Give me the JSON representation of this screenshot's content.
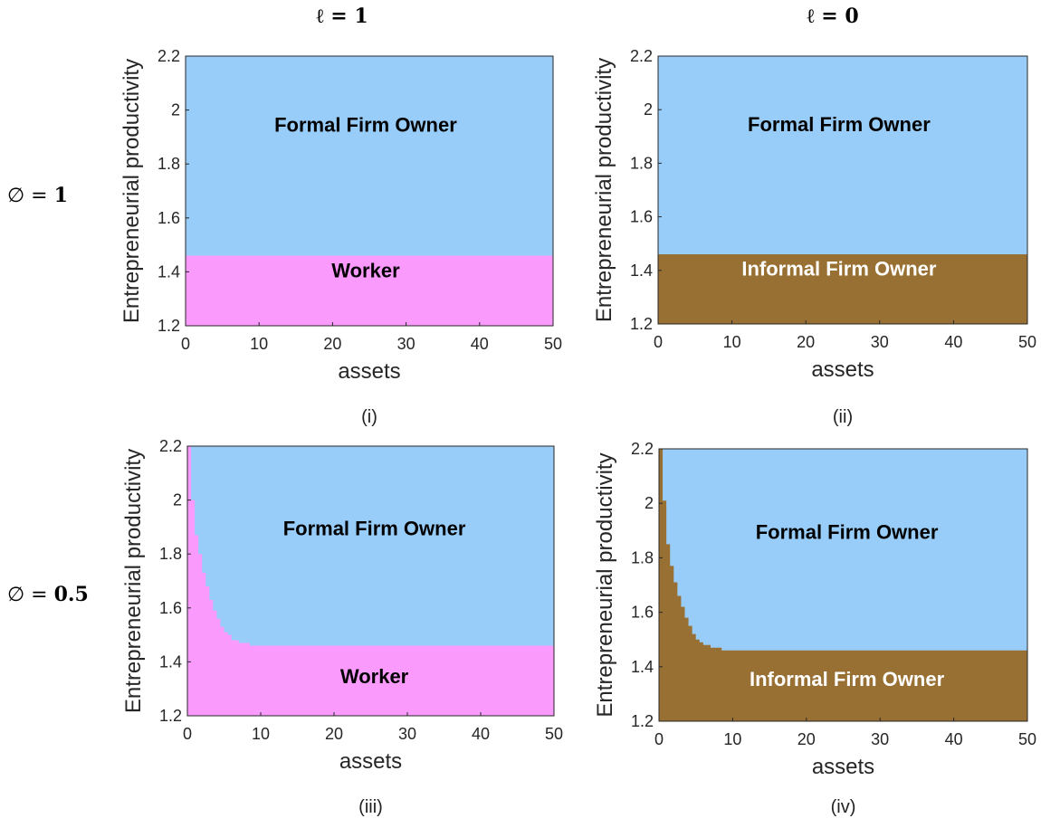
{
  "column_headers": [
    "ℓ = 1",
    "ℓ = 0"
  ],
  "row_headers": [
    {
      "symbol": "∅ = ",
      "value": "1"
    },
    {
      "symbol": "∅ = ",
      "value": "0.5"
    }
  ],
  "colors": {
    "formal": "#99cdf9",
    "worker": "#fb9afd",
    "informal": "#987033",
    "label_dark": "#000000",
    "label_light": "#ffffff"
  },
  "chart_data": [
    {
      "type": "heatmap",
      "caption": "(i)",
      "xlabel": "assets",
      "ylabel": "Entrepreneurial productivity",
      "xlim": [
        0,
        50
      ],
      "ylim": [
        1.2,
        2.2
      ],
      "xticks": [
        "0",
        "10",
        "20",
        "30",
        "40",
        "50"
      ],
      "yticks": [
        "1.2",
        "1.4",
        "1.6",
        "1.8",
        "2",
        "2.2"
      ],
      "regions": [
        {
          "name": "Formal Firm Owner",
          "color_key": "formal",
          "label_color_key": "label_dark",
          "label_pos": [
            24.5,
            1.92
          ]
        },
        {
          "name": "Worker",
          "color_key": "worker",
          "label_color_key": "label_dark",
          "label_pos": [
            24.5,
            1.38
          ]
        }
      ],
      "boundary": [
        [
          0,
          1.46
        ],
        [
          50,
          1.46
        ]
      ]
    },
    {
      "type": "heatmap",
      "caption": "(ii)",
      "xlabel": "assets",
      "ylabel": "Entrepreneurial productivity",
      "xlim": [
        0,
        50
      ],
      "ylim": [
        1.2,
        2.2
      ],
      "xticks": [
        "0",
        "10",
        "20",
        "30",
        "40",
        "50"
      ],
      "yticks": [
        "1.2",
        "1.4",
        "1.6",
        "1.8",
        "2",
        "2.2"
      ],
      "regions": [
        {
          "name": "Formal Firm Owner",
          "color_key": "formal",
          "label_color_key": "label_dark",
          "label_pos": [
            24.5,
            1.92
          ]
        },
        {
          "name": "Informal Firm Owner",
          "color_key": "informal",
          "label_color_key": "label_light",
          "label_pos": [
            24.5,
            1.38
          ]
        }
      ],
      "boundary": [
        [
          0,
          1.46
        ],
        [
          50,
          1.46
        ]
      ]
    },
    {
      "type": "heatmap",
      "caption": "(iii)",
      "xlabel": "assets",
      "ylabel": "Entrepreneurial productivity",
      "xlim": [
        0,
        50
      ],
      "ylim": [
        1.2,
        2.2
      ],
      "xticks": [
        "0",
        "10",
        "20",
        "30",
        "40",
        "50"
      ],
      "yticks": [
        "1.2",
        "1.4",
        "1.6",
        "1.8",
        "2",
        "2.2"
      ],
      "regions": [
        {
          "name": "Formal Firm Owner",
          "color_key": "formal",
          "label_color_key": "label_dark",
          "label_pos": [
            25.5,
            1.87
          ]
        },
        {
          "name": "Worker",
          "color_key": "worker",
          "label_color_key": "label_dark",
          "label_pos": [
            25.5,
            1.32
          ]
        }
      ],
      "boundary": [
        [
          0,
          2.2
        ],
        [
          0.5,
          2.2
        ],
        [
          0.5,
          2.0
        ],
        [
          1,
          2.0
        ],
        [
          1,
          1.87
        ],
        [
          1.5,
          1.87
        ],
        [
          1.5,
          1.8
        ],
        [
          2,
          1.8
        ],
        [
          2,
          1.73
        ],
        [
          2.5,
          1.73
        ],
        [
          2.5,
          1.68
        ],
        [
          3,
          1.68
        ],
        [
          3,
          1.63
        ],
        [
          3.5,
          1.63
        ],
        [
          3.5,
          1.59
        ],
        [
          4,
          1.59
        ],
        [
          4,
          1.56
        ],
        [
          4.5,
          1.56
        ],
        [
          4.5,
          1.53
        ],
        [
          5,
          1.53
        ],
        [
          5,
          1.51
        ],
        [
          5.5,
          1.51
        ],
        [
          5.5,
          1.5
        ],
        [
          6,
          1.5
        ],
        [
          6,
          1.48
        ],
        [
          7,
          1.48
        ],
        [
          7,
          1.47
        ],
        [
          8.5,
          1.47
        ],
        [
          8.5,
          1.46
        ],
        [
          50,
          1.46
        ]
      ]
    },
    {
      "type": "heatmap",
      "caption": "(iv)",
      "xlabel": "assets",
      "ylabel": "Entrepreneurial productivity",
      "xlim": [
        0,
        50
      ],
      "ylim": [
        1.2,
        2.2
      ],
      "xticks": [
        "0",
        "10",
        "20",
        "30",
        "40",
        "50"
      ],
      "yticks": [
        "1.2",
        "1.4",
        "1.6",
        "1.8",
        "2",
        "2.2"
      ],
      "regions": [
        {
          "name": "Formal Firm Owner",
          "color_key": "formal",
          "label_color_key": "label_dark",
          "label_pos": [
            25.5,
            1.87
          ]
        },
        {
          "name": "Informal Firm Owner",
          "color_key": "informal",
          "label_color_key": "label_light",
          "label_pos": [
            25.5,
            1.33
          ]
        }
      ],
      "boundary": [
        [
          0,
          2.2
        ],
        [
          0.5,
          2.2
        ],
        [
          0.5,
          2.01
        ],
        [
          1,
          2.01
        ],
        [
          1,
          1.85
        ],
        [
          1.5,
          1.85
        ],
        [
          1.5,
          1.77
        ],
        [
          2,
          1.77
        ],
        [
          2,
          1.71
        ],
        [
          2.5,
          1.71
        ],
        [
          2.5,
          1.66
        ],
        [
          3,
          1.66
        ],
        [
          3,
          1.62
        ],
        [
          3.5,
          1.62
        ],
        [
          3.5,
          1.58
        ],
        [
          4,
          1.58
        ],
        [
          4,
          1.55
        ],
        [
          4.5,
          1.55
        ],
        [
          4.5,
          1.52
        ],
        [
          5,
          1.52
        ],
        [
          5,
          1.5
        ],
        [
          5.5,
          1.5
        ],
        [
          5.5,
          1.49
        ],
        [
          6,
          1.49
        ],
        [
          6,
          1.48
        ],
        [
          7,
          1.48
        ],
        [
          7,
          1.47
        ],
        [
          8.5,
          1.47
        ],
        [
          8.5,
          1.46
        ],
        [
          50,
          1.46
        ]
      ]
    }
  ]
}
